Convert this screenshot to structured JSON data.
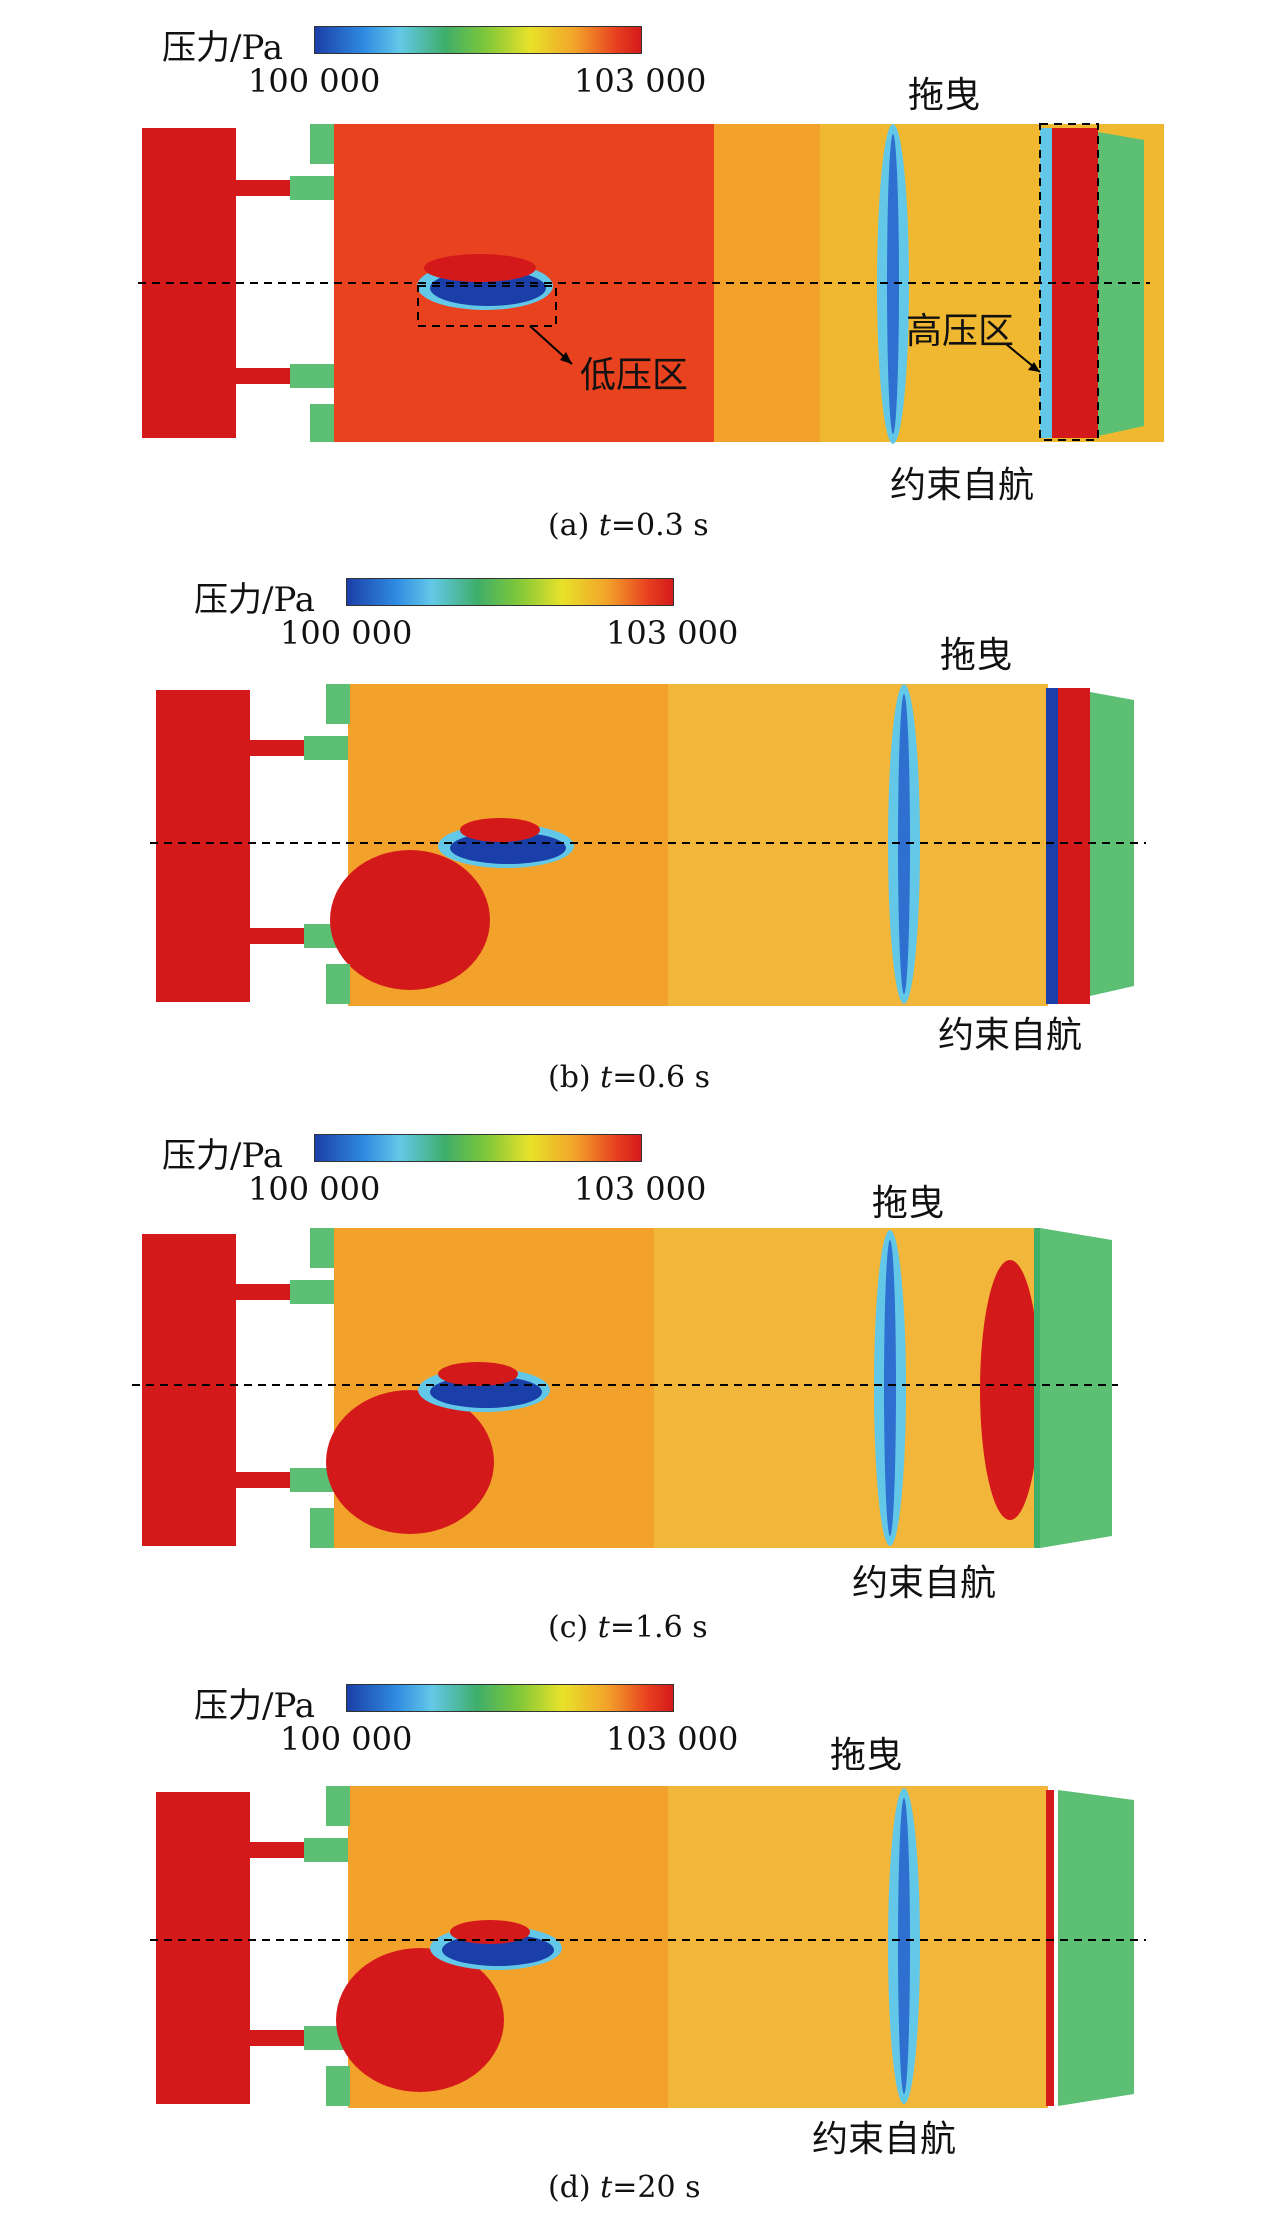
{
  "legend": {
    "title": "压力/Pa",
    "min": "100 000",
    "max": "103 000"
  },
  "colormap": [
    "#1b3fa8",
    "#2f8be0",
    "#63c8e8",
    "#3fae6a",
    "#7cc63a",
    "#e8e22a",
    "#f2a22a",
    "#e8421f",
    "#d4191b"
  ],
  "panels": [
    {
      "caption_prefix": "(a)",
      "caption_var": "t",
      "caption_value": "=0.3 s",
      "label_tow": "拖曳",
      "label_self": "约束自航",
      "label_low": "低压区",
      "label_high": "高压区"
    },
    {
      "caption_prefix": "(b)",
      "caption_var": "t",
      "caption_value": "=0.6 s",
      "label_tow": "拖曳",
      "label_self": "约束自航"
    },
    {
      "caption_prefix": "(c)",
      "caption_var": "t",
      "caption_value": "=1.6 s",
      "label_tow": "拖曳",
      "label_self": "约束自航"
    },
    {
      "caption_prefix": "(d)",
      "caption_var": "t",
      "caption_value": "=20 s",
      "label_tow": "拖曳",
      "label_self": "约束自航"
    }
  ]
}
